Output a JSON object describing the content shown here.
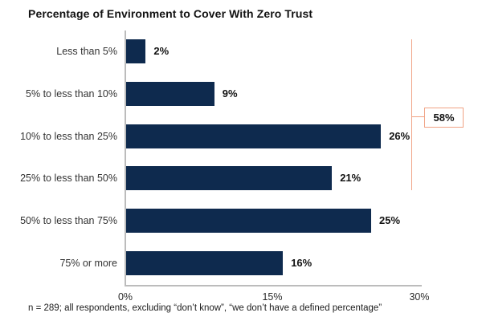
{
  "title": "Percentage of Environment to Cover With Zero Trust",
  "footnote": "n = 289; all respondents, excluding “don’t know”, “we don’t have a defined percentage”",
  "chart_data": {
    "type": "bar",
    "orientation": "horizontal",
    "title": "Percentage of Environment to Cover With Zero Trust",
    "categories": [
      "Less than 5%",
      "5% to less than 10%",
      "10% to less than 25%",
      "25% to less than 50%",
      "50% to less than 75%",
      "75% or more"
    ],
    "values": [
      2,
      9,
      26,
      21,
      25,
      16
    ],
    "value_labels": [
      "2%",
      "9%",
      "26%",
      "21%",
      "25%",
      "16%"
    ],
    "xlabel": "",
    "ylabel": "",
    "xlim": [
      0,
      30
    ],
    "x_ticks": [
      "0%",
      "15%",
      "30%"
    ],
    "x_tick_values": [
      0,
      15,
      30
    ],
    "grid": false,
    "legend": false,
    "bar_color": "#0e2a4e",
    "axis_color": "#bcbcbc",
    "annotation": {
      "label": "58%",
      "covers_categories": [
        "Less than 5%",
        "5% to less than 10%",
        "10% to less than 25%",
        "25% to less than 50%"
      ],
      "covered_sum": 58,
      "bracket_color": "#f0a284"
    }
  }
}
